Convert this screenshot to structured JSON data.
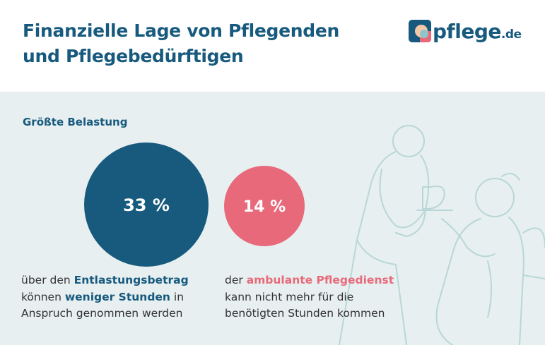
{
  "header": {
    "title_lines": [
      "Finanzielle Lage von Pflegenden",
      "und Pflegebedürftigen"
    ]
  },
  "logo": {
    "name": "pflege",
    "tld": ".de"
  },
  "section": {
    "label": "Größte Belastung"
  },
  "items": [
    {
      "value_label": "33 %",
      "lines": [
        [
          "über den ",
          "Entlastungsbetrag"
        ],
        [
          "können ",
          "weniger Stunden",
          " in"
        ],
        [
          "Anspruch genommen werden"
        ]
      ]
    },
    {
      "value_label": "14 %",
      "lines": [
        [
          "der ",
          "ambulante Pflegedienst"
        ],
        [
          "kann nicht mehr für die"
        ],
        [
          "benötigten Stunden kommen"
        ]
      ]
    }
  ]
}
